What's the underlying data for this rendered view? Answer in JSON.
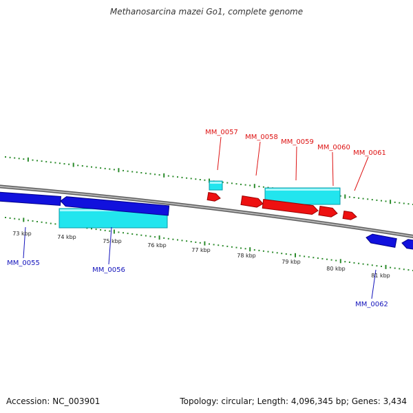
{
  "title": "Methanosarcina mazei Go1, complete genome",
  "footer": {
    "accession": "Accession: NC_003901",
    "summary": "Topology: circular; Length: 4,096,345 bp; Genes: 3,434"
  },
  "colors": {
    "backbone": "#8c8c8c",
    "tick": "#2a8a2a",
    "forward_gene": "#ee1111",
    "reverse_gene": "#1111dd",
    "feature": "#22e5ee",
    "forward_label": "#dd1111",
    "reverse_label": "#1111bb"
  },
  "scale_labels": [
    "73 kbp",
    "74 kbp",
    "75 kbp",
    "76 kbp",
    "77 kbp",
    "78 kbp",
    "79 kbp",
    "80 kbp",
    "81 kbp"
  ],
  "gene_labels_top": [
    "MM_0057",
    "MM_0058",
    "MM_0059",
    "MM_0060",
    "MM_0061"
  ],
  "gene_labels_bottom": [
    "MM_0055",
    "MM_0056",
    "MM_0062"
  ]
}
